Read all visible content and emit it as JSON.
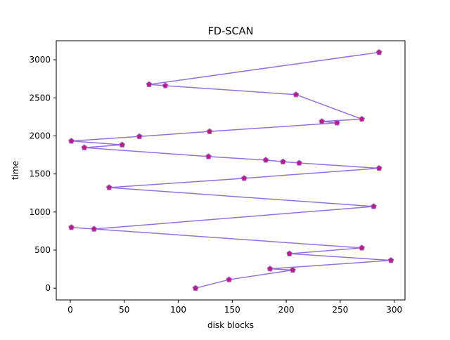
{
  "chart_data": {
    "type": "line",
    "title": "FD-SCAN",
    "xlabel": "disk blocks",
    "ylabel": "time",
    "xlim": [
      -13,
      310
    ],
    "ylim": [
      -155,
      3250
    ],
    "xticks": [
      0,
      50,
      100,
      150,
      200,
      250,
      300
    ],
    "yticks": [
      0,
      500,
      1000,
      1500,
      2000,
      2500,
      3000
    ],
    "grid": false,
    "colors": {
      "line": "#9370db",
      "marker_fill": "#c71585",
      "marker_edge": "#9370db",
      "axes": "#000000",
      "background": "#ffffff"
    },
    "marker": "pentagon",
    "series": [
      {
        "x": [
          116,
          147,
          206,
          185,
          297,
          203,
          270,
          1,
          22,
          281,
          36,
          161,
          286,
          212,
          197,
          181,
          128,
          13,
          48,
          1,
          64,
          129,
          247,
          233,
          270,
          209,
          88,
          73,
          286
        ],
        "y": [
          0,
          112,
          237,
          254,
          365,
          453,
          529,
          798,
          777,
          1073,
          1322,
          1443,
          1575,
          1644,
          1661,
          1683,
          1729,
          1846,
          1883,
          1933,
          1993,
          2058,
          2171,
          2190,
          2221,
          2542,
          2660,
          2676,
          3098
        ]
      }
    ]
  }
}
